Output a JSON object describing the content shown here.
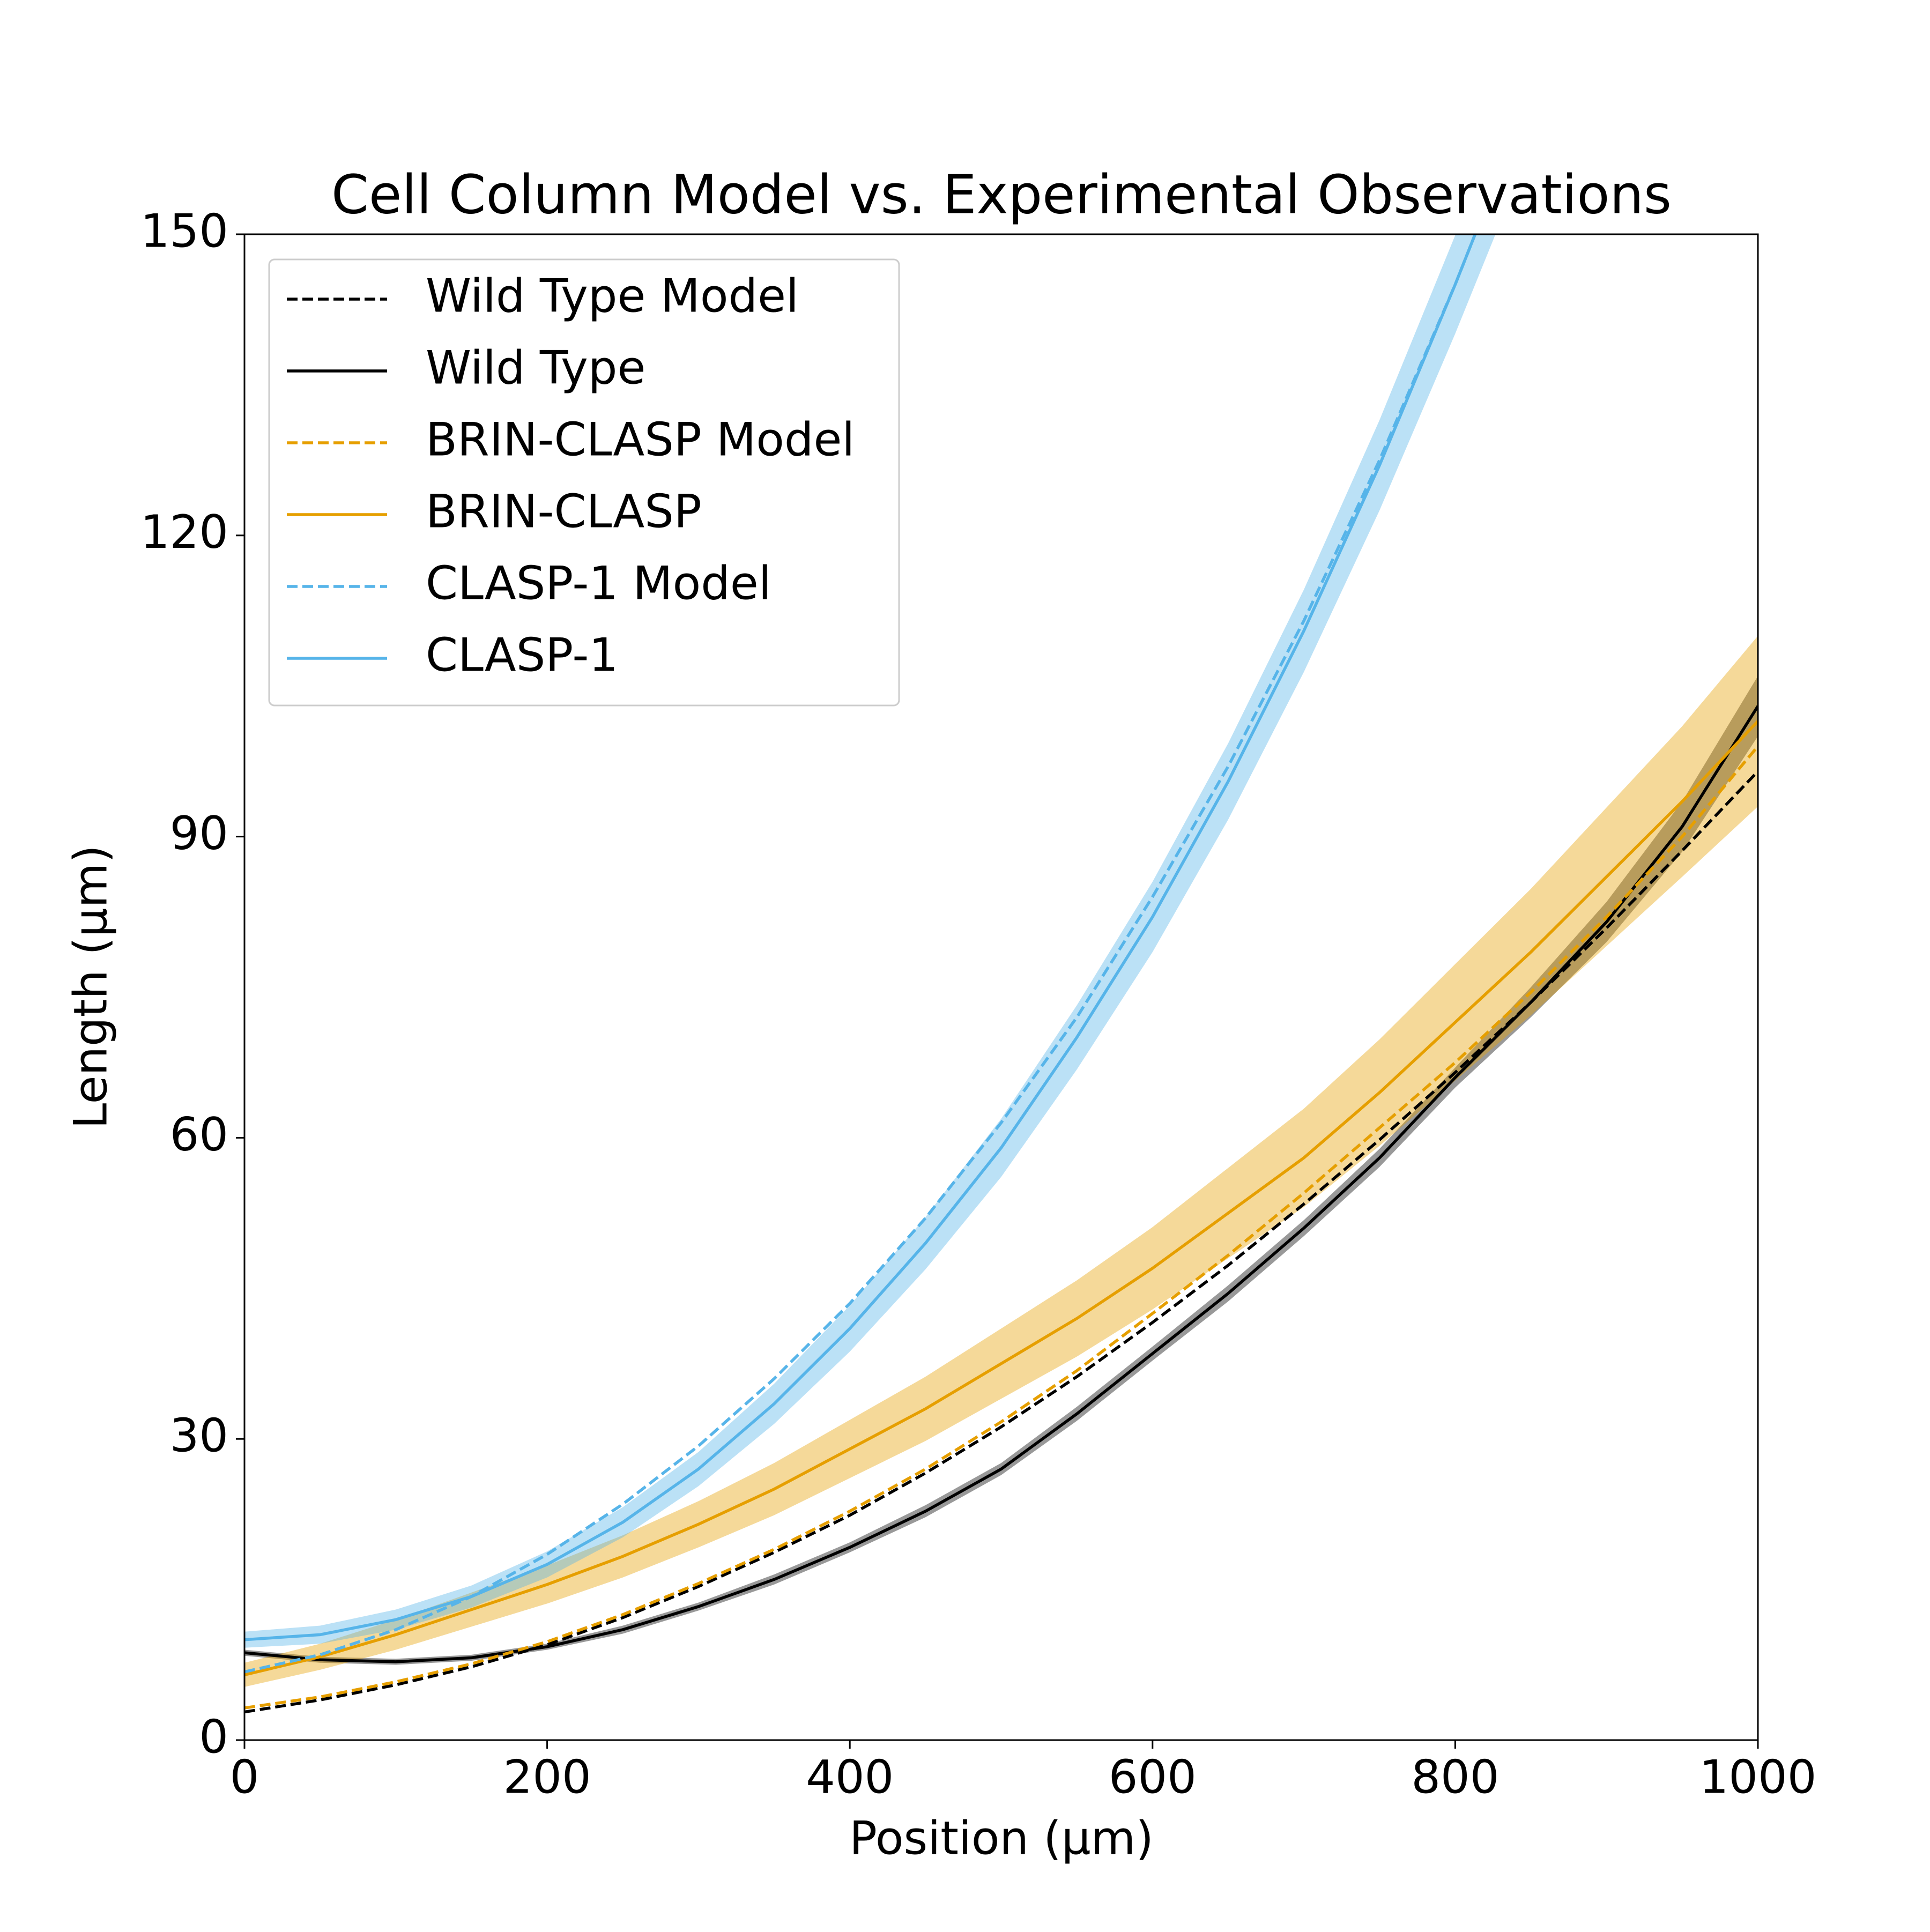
{
  "chart_data": {
    "type": "line",
    "title": "Cell Column Model vs. Experimental Observations",
    "x_label": "Position (μm)",
    "y_label": "Length (μm)",
    "x": [
      0,
      50,
      100,
      150,
      200,
      250,
      300,
      350,
      400,
      450,
      500,
      550,
      600,
      650,
      700,
      750,
      800,
      850,
      900,
      950,
      1000
    ],
    "xlim": [
      0,
      1000
    ],
    "xticks": [
      0,
      200,
      400,
      600,
      800,
      1000
    ],
    "ylim": [
      0,
      150
    ],
    "yticks": [
      0,
      30,
      60,
      90,
      120,
      150
    ],
    "legend": "upper left",
    "series": [
      {
        "name": "Wild Type Model",
        "color": "#000000",
        "dashed": true,
        "values": [
          2.8,
          4.0,
          5.5,
          7.3,
          9.5,
          12.2,
          15.3,
          18.7,
          22.4,
          26.6,
          31.2,
          36.2,
          41.6,
          47.3,
          53.4,
          59.8,
          66.5,
          73.5,
          80.9,
          88.6,
          96.5
        ]
      },
      {
        "name": "Wild Type",
        "color": "#000000",
        "dashed": false,
        "values": [
          8.7,
          8.0,
          7.8,
          8.2,
          9.3,
          11.0,
          13.3,
          16.0,
          19.2,
          22.8,
          27.0,
          32.5,
          38.5,
          44.5,
          51.0,
          58.0,
          66.0,
          73.5,
          81.5,
          91.0,
          103.0
        ],
        "band": [
          0.3,
          0.3,
          0.3,
          0.3,
          0.3,
          0.4,
          0.4,
          0.5,
          0.5,
          0.6,
          0.6,
          0.7,
          0.7,
          0.8,
          0.8,
          0.9,
          1.0,
          1.5,
          2.0,
          2.5,
          3.0
        ]
      },
      {
        "name": "BRIN-CLASP Model",
        "color": "#E69F00",
        "dashed": true,
        "values": [
          3.2,
          4.3,
          5.8,
          7.6,
          9.8,
          12.5,
          15.6,
          19.0,
          22.8,
          27.0,
          31.7,
          36.8,
          42.5,
          48.3,
          54.5,
          61.0,
          67.5,
          74.5,
          82.0,
          90.0,
          99.0
        ]
      },
      {
        "name": "BRIN-CLASP",
        "color": "#E69F00",
        "dashed": false,
        "values": [
          6.5,
          8.3,
          10.5,
          13.0,
          15.5,
          18.3,
          21.5,
          25.0,
          29.0,
          33.0,
          37.5,
          42.0,
          47.0,
          52.5,
          58.0,
          64.5,
          71.5,
          78.5,
          86.0,
          93.5,
          101.5
        ],
        "band": [
          1.2,
          1.3,
          1.5,
          1.7,
          1.9,
          2.1,
          2.3,
          2.6,
          2.9,
          3.2,
          3.5,
          3.8,
          4.1,
          4.5,
          4.9,
          5.3,
          5.8,
          6.3,
          6.9,
          7.5,
          8.5
        ]
      },
      {
        "name": "CLASP-1 Model",
        "color": "#56B4E9",
        "dashed": true,
        "values": [
          6.8,
          8.5,
          11.0,
          14.3,
          18.5,
          23.5,
          29.3,
          36.0,
          43.5,
          52.0,
          61.5,
          72.0,
          84.0,
          97.0,
          111.5,
          127.5,
          145.0,
          164.0,
          null,
          null,
          null
        ]
      },
      {
        "name": "CLASP-1",
        "color": "#56B4E9",
        "dashed": false,
        "values": [
          10.0,
          10.5,
          12.0,
          14.3,
          17.5,
          21.7,
          27.0,
          33.5,
          41.0,
          49.5,
          59.0,
          70.0,
          82.0,
          95.5,
          110.5,
          127.0,
          145.0,
          164.0,
          null,
          null,
          null
        ],
        "band": [
          0.8,
          0.9,
          1.0,
          1.1,
          1.3,
          1.5,
          1.7,
          2.0,
          2.3,
          2.6,
          2.9,
          3.2,
          3.5,
          3.8,
          4.1,
          4.5,
          4.9,
          5.3,
          null,
          null,
          null
        ]
      }
    ]
  }
}
